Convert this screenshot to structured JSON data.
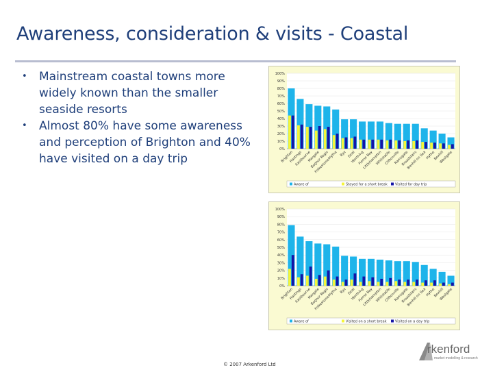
{
  "slide": {
    "title": "Awareness, consideration & visits - Coastal",
    "bullets": [
      "Mainstream coastal towns more widely known than the smaller seaside resorts",
      "Almost 80% have some awareness and perception of Brighton and 40% have visited on a day trip"
    ],
    "copyright": "© 2007 Arkenford Ltd",
    "logo": {
      "word": "rkenford",
      "initial": "A",
      "tagline": "market modelling & research"
    }
  },
  "colors": {
    "aware": "#1eb4ea",
    "considered": "#f5f53a",
    "visited": "#1414a6",
    "plot_bg": "#fafad2",
    "title": "#1f3f7a"
  },
  "chart_data": [
    {
      "type": "bar",
      "title": "",
      "ylabel": "",
      "ylim": [
        0,
        100
      ],
      "yticks": [
        "100%",
        "90%",
        "80%",
        "70%",
        "60%",
        "50%",
        "40%",
        "30%",
        "20%",
        "10%",
        "0%"
      ],
      "categories": [
        "Brighton",
        "Hastings",
        "Eastbourne",
        "Margate",
        "Bognor Regis",
        "Folkestone/Hythe",
        "Rye",
        "Deal",
        "Worthing",
        "Herne Bay",
        "Littlehampton",
        "Whitstable",
        "Cliftonville",
        "Ramsgate",
        "Broadstairs",
        "Bexhill on Sea",
        "Hythe",
        "Bexhill",
        "Westgate"
      ],
      "series": [
        {
          "name": "Aware of",
          "values": [
            80,
            66,
            59,
            57,
            56,
            52,
            39,
            39,
            36,
            36,
            36,
            34,
            33,
            33,
            33,
            27,
            24,
            20,
            15
          ]
        },
        {
          "name": "Stayed for a short break",
          "values": [
            44,
            31,
            29,
            24,
            26,
            18,
            14,
            14,
            12,
            12,
            12,
            11,
            11,
            10,
            10,
            9,
            8,
            7,
            5
          ]
        },
        {
          "name": "Visited for day trip",
          "values": [
            44,
            32,
            29,
            30,
            29,
            20,
            15,
            16,
            12,
            12,
            12,
            12,
            11,
            11,
            11,
            9,
            8,
            7,
            6
          ]
        }
      ]
    },
    {
      "type": "bar",
      "title": "",
      "ylabel": "",
      "ylim": [
        0,
        100
      ],
      "yticks": [
        "100%",
        "90%",
        "80%",
        "70%",
        "60%",
        "50%",
        "40%",
        "30%",
        "20%",
        "10%",
        "0%"
      ],
      "categories": [
        "Brighton",
        "Hastings",
        "Eastbourne",
        "Margate",
        "Bognor Regis",
        "Folkestone/Hythe",
        "Rye",
        "Deal",
        "Worthing",
        "Herne Bay",
        "Littlehampton",
        "Whitstable",
        "Cliftonville",
        "Ramsgate",
        "Broadstairs",
        "Bexhill on Sea",
        "Hythe",
        "Bexhill",
        "Westgate"
      ],
      "series": [
        {
          "name": "Aware of",
          "values": [
            79,
            64,
            58,
            55,
            54,
            51,
            39,
            38,
            35,
            35,
            34,
            33,
            32,
            32,
            31,
            27,
            22,
            18,
            13
          ]
        },
        {
          "name": "Visited on a short break",
          "values": [
            22,
            11,
            13,
            9,
            12,
            8,
            5,
            8,
            5,
            6,
            5,
            5,
            6,
            5,
            5,
            4,
            4,
            3,
            2
          ]
        },
        {
          "name": "Visited on a day trip",
          "values": [
            40,
            15,
            25,
            14,
            20,
            12,
            8,
            16,
            12,
            11,
            9,
            10,
            8,
            8,
            8,
            7,
            7,
            4,
            4
          ]
        }
      ]
    }
  ]
}
